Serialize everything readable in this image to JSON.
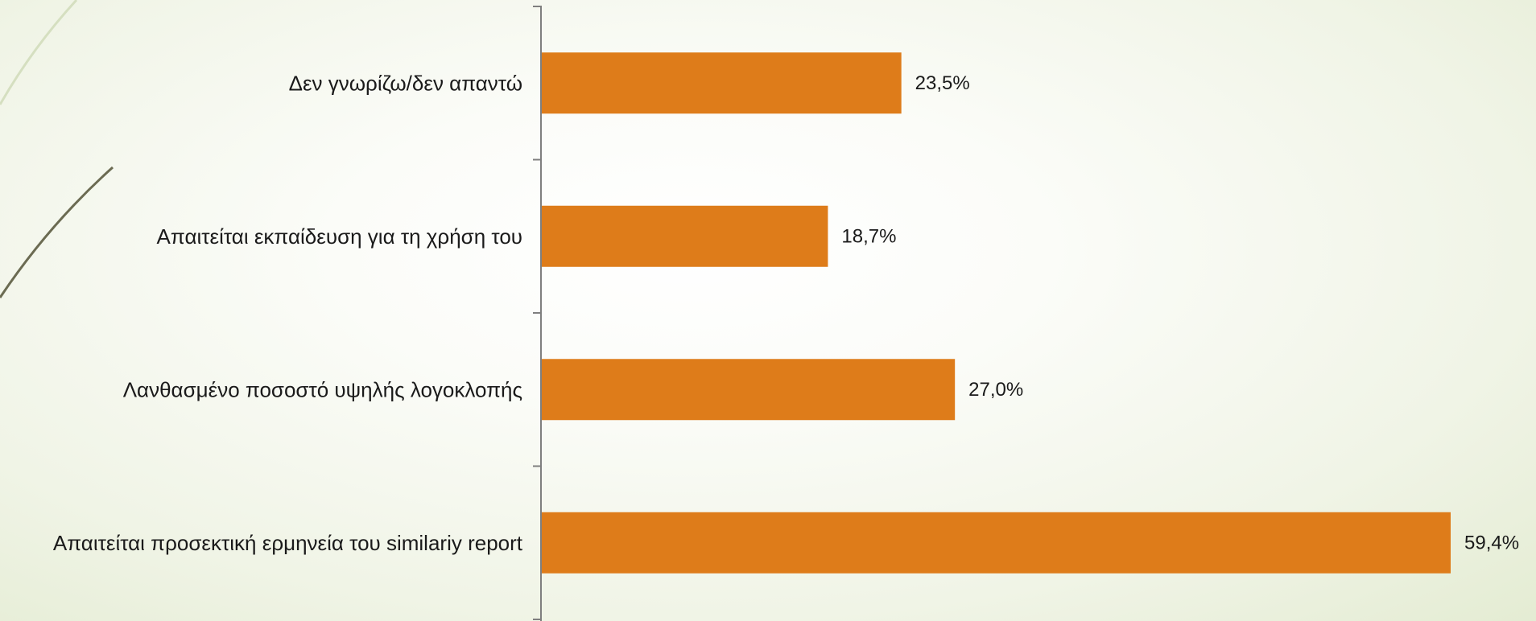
{
  "chart_data": {
    "type": "bar",
    "orientation": "horizontal",
    "categories": [
      "Δεν γνωρίζω/δεν απαντώ",
      "Απαιτείται εκπαίδευση για τη χρήση του",
      "Λανθασμένο ποσοστό υψηλής λογοκλοπής",
      "Απαιτείται προσεκτική ερμηνεία του similariy report"
    ],
    "values": [
      23.5,
      18.7,
      27.0,
      59.4
    ],
    "value_labels": [
      "23,5%",
      "18,7%",
      "27,0%",
      "59,4%"
    ],
    "bar_color": "#de7c1a",
    "axis_color": "#7f7f7f",
    "grid": false,
    "legend": "none"
  }
}
